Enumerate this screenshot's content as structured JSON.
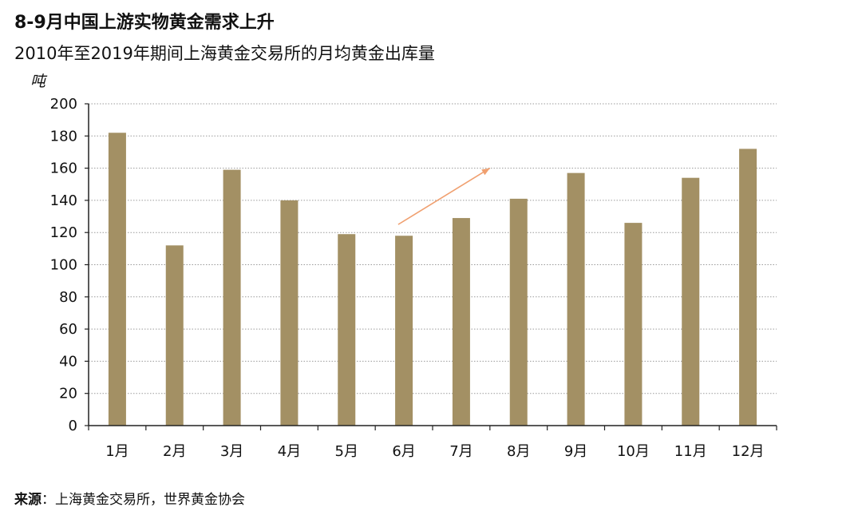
{
  "chart_data": {
    "type": "bar",
    "title": "8-9月中国上游实物黄金需求上升",
    "subtitle": "2010年至2019年期间上海黄金交易所的月均黄金出库量",
    "ylabel": "吨",
    "xlabel": "",
    "categories": [
      "1月",
      "2月",
      "3月",
      "4月",
      "5月",
      "6月",
      "7月",
      "8月",
      "9月",
      "10月",
      "11月",
      "12月"
    ],
    "values": [
      182,
      112,
      159,
      140,
      119,
      118,
      129,
      141,
      157,
      126,
      154,
      172
    ],
    "ylim": [
      0,
      200
    ],
    "yticks": [
      0,
      20,
      40,
      60,
      80,
      100,
      120,
      140,
      160,
      180,
      200
    ],
    "grid": true,
    "bar_color": "#a39064",
    "annotation": {
      "type": "arrow",
      "color": "#f0a070",
      "from": {
        "x": 5.4,
        "y": 125
      },
      "to": {
        "x": 7.0,
        "y": 160
      }
    }
  },
  "source": {
    "label": "来源",
    "separator": "：",
    "text": "上海黄金交易所，世界黄金协会"
  }
}
